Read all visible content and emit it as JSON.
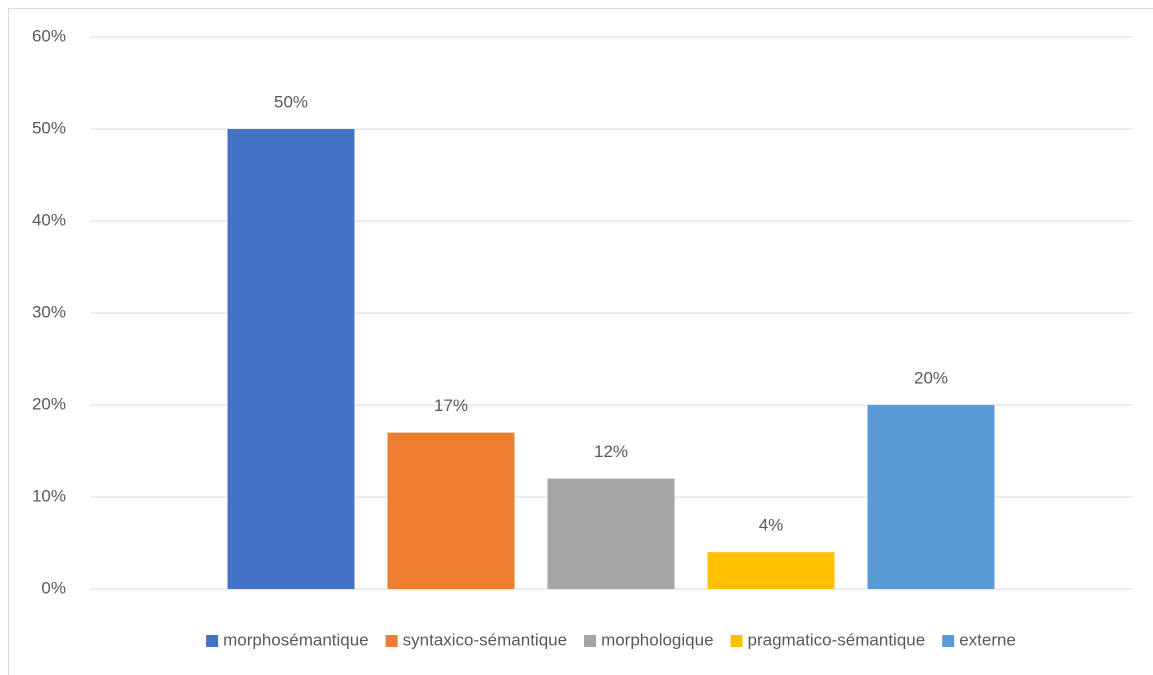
{
  "chart_data": {
    "type": "bar",
    "categories": [
      null
    ],
    "series": [
      {
        "name": "morphosémantique",
        "color": "#4472c4",
        "values": [
          50
        ],
        "value_labels": [
          "50%"
        ]
      },
      {
        "name": "syntaxico-sémantique",
        "color": "#ed7d31",
        "values": [
          17
        ],
        "value_labels": [
          "17%"
        ]
      },
      {
        "name": "morphologique",
        "color": "#a5a5a5",
        "values": [
          12
        ],
        "value_labels": [
          "12%"
        ]
      },
      {
        "name": "pragmatico-sémantique",
        "color": "#ffc000",
        "values": [
          4
        ],
        "value_labels": [
          "4%"
        ]
      },
      {
        "name": "externe",
        "color": "#5b9bd5",
        "values": [
          20
        ],
        "value_labels": [
          "20%"
        ]
      }
    ],
    "ylim": [
      0,
      60
    ],
    "yticks": [
      {
        "value": 0,
        "label": "0%"
      },
      {
        "value": 10,
        "label": "10%"
      },
      {
        "value": 20,
        "label": "20%"
      },
      {
        "value": 30,
        "label": "30%"
      },
      {
        "value": 40,
        "label": "40%"
      },
      {
        "value": 50,
        "label": "50%"
      },
      {
        "value": 60,
        "label": "60%"
      }
    ],
    "grid": true,
    "legend": "bottom"
  }
}
